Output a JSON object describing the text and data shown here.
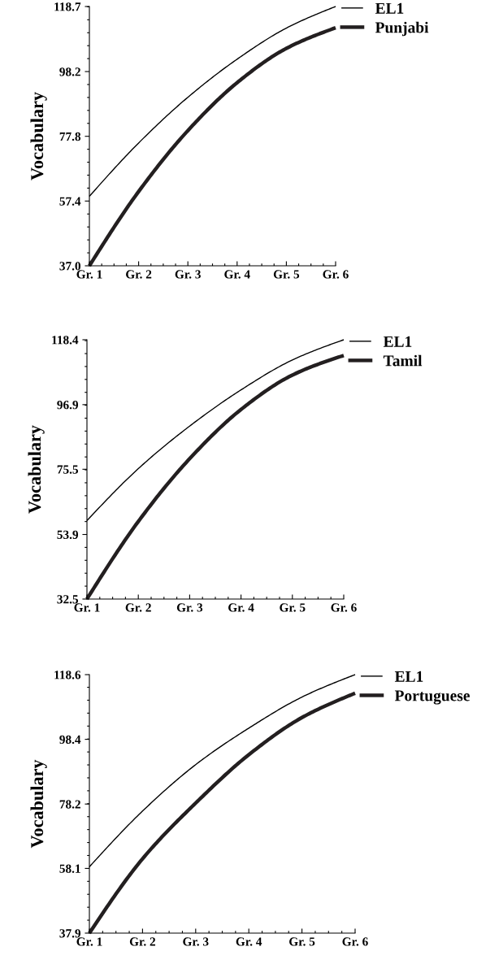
{
  "chart_data": [
    {
      "type": "line",
      "ylabel": "Vocabulary",
      "x": [
        1,
        2,
        3,
        4,
        5,
        6
      ],
      "xlim": [
        1,
        6
      ],
      "xticks": [
        {
          "value": 1,
          "label": "Gr. 1"
        },
        {
          "value": 2,
          "label": "Gr. 2"
        },
        {
          "value": 3,
          "label": "Gr. 3"
        },
        {
          "value": 4,
          "label": "Gr. 4"
        },
        {
          "value": 5,
          "label": "Gr. 5"
        },
        {
          "value": 6,
          "label": "Gr. 6"
        }
      ],
      "ylim": [
        37.0,
        118.7
      ],
      "yticks": [
        {
          "value": 37.0,
          "label": "37.0"
        },
        {
          "value": 57.4,
          "label": "57.4"
        },
        {
          "value": 77.8,
          "label": "77.8"
        },
        {
          "value": 98.2,
          "label": "98.2"
        },
        {
          "value": 118.7,
          "label": "118.7"
        }
      ],
      "grid": false,
      "legend": "right",
      "marker": "none",
      "series": [
        {
          "name": "EL1",
          "color": "#000000",
          "values": [
            58.9,
            75.7,
            90.1,
            102.1,
            111.9,
            118.7
          ]
        },
        {
          "name": "Punjabi",
          "color": "#231f20",
          "values": [
            37.0,
            60.4,
            79.6,
            94.7,
            105.5,
            112.0
          ]
        }
      ]
    },
    {
      "type": "line",
      "ylabel": "Vocabulary",
      "x": [
        1,
        2,
        3,
        4,
        5,
        6
      ],
      "xlim": [
        1,
        6
      ],
      "xticks": [
        {
          "value": 1,
          "label": "Gr. 1"
        },
        {
          "value": 2,
          "label": "Gr. 2"
        },
        {
          "value": 3,
          "label": "Gr. 3"
        },
        {
          "value": 4,
          "label": "Gr. 4"
        },
        {
          "value": 5,
          "label": "Gr. 5"
        },
        {
          "value": 6,
          "label": "Gr. 6"
        }
      ],
      "ylim": [
        32.5,
        118.4
      ],
      "yticks": [
        32.5,
        53.9,
        75.5,
        96.9,
        118.4
      ],
      "grid": false,
      "legend": "right",
      "marker": "none",
      "series": [
        {
          "name": "EL1",
          "color": "#000000",
          "values": [
            58.5,
            75.7,
            89.8,
            101.8,
            111.7,
            118.4
          ]
        },
        {
          "name": "Tamil",
          "color": "#231f20",
          "values": [
            32.5,
            58.2,
            79.0,
            95.3,
            106.7,
            113.2
          ]
        }
      ]
    },
    {
      "type": "line",
      "ylabel": "Vocabulary",
      "x": [
        1,
        2,
        3,
        4,
        5,
        6
      ],
      "xlim": [
        1,
        6
      ],
      "xticks": [
        {
          "value": 1,
          "label": "Gr. 1"
        },
        {
          "value": 2,
          "label": "Gr. 2"
        },
        {
          "value": 3,
          "label": "Gr. 3"
        },
        {
          "value": 4,
          "label": "Gr. 4"
        },
        {
          "value": 5,
          "label": "Gr. 5"
        },
        {
          "value": 6,
          "label": "Gr. 6"
        }
      ],
      "ylim": [
        37.9,
        118.6
      ],
      "yticks": [
        37.9,
        58.1,
        78.2,
        98.4,
        118.6
      ],
      "grid": false,
      "legend": "right",
      "marker": "none",
      "series": [
        {
          "name": "EL1",
          "color": "#000000",
          "values": [
            58.6,
            76.0,
            90.5,
            101.9,
            111.6,
            118.6
          ]
        },
        {
          "name": "Portuguese",
          "color": "#231f20",
          "values": [
            37.9,
            61.1,
            78.5,
            93.6,
            105.2,
            112.8
          ]
        }
      ]
    }
  ]
}
